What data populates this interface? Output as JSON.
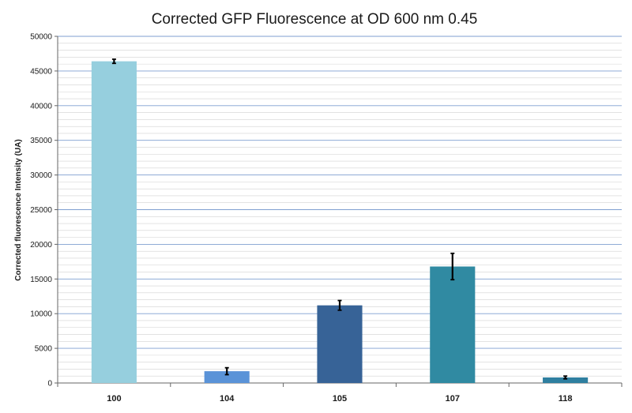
{
  "chart_data": {
    "type": "bar",
    "title": "Corrected GFP Fluorescence at OD 600 nm 0.45",
    "xlabel": "",
    "ylabel": "Corrected fluorescence Intensity (UA)",
    "categories": [
      "100",
      "104",
      "105",
      "107",
      "118"
    ],
    "values": [
      46400,
      1700,
      11200,
      16800,
      800
    ],
    "error_bars": [
      300,
      500,
      700,
      1900,
      200
    ],
    "colors": [
      "#96cfde",
      "#5a93d8",
      "#376397",
      "#308aa2",
      "#2f7fa0"
    ],
    "ylim": [
      0,
      50000
    ],
    "y_ticks": [
      "0",
      "5000",
      "10000",
      "15000",
      "20000",
      "25000",
      "30000",
      "35000",
      "40000",
      "45000",
      "50000"
    ],
    "grid": true,
    "legend": "none"
  }
}
